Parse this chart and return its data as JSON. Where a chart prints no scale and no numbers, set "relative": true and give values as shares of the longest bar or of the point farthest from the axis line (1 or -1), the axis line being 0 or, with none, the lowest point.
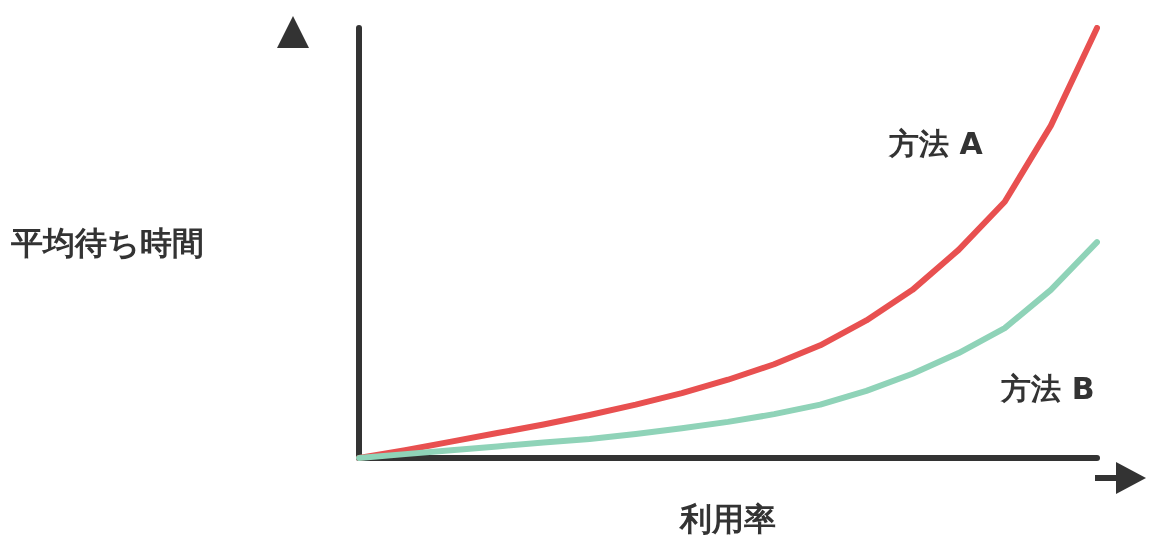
{
  "chart_data": {
    "type": "line",
    "relative": true,
    "xlabel": "利用率",
    "ylabel": "平均待ち時間",
    "categories": [
      null,
      null,
      null,
      null,
      null,
      null,
      null,
      null,
      null,
      null,
      null,
      null,
      null,
      null,
      null,
      null,
      null
    ],
    "marker": "none",
    "grid": false,
    "series": [
      {
        "name": "方法 A",
        "color": "#e85050",
        "values": [
          0,
          0.018,
          0.038,
          0.058,
          0.078,
          0.1,
          0.124,
          0.151,
          0.182,
          0.218,
          0.262,
          0.32,
          0.391,
          0.484,
          0.596,
          0.773,
          1
        ]
      },
      {
        "name": "方法 B",
        "color": "#8fd3b8",
        "values": [
          0,
          0.009,
          0.018,
          0.027,
          0.036,
          0.044,
          0.056,
          0.069,
          0.084,
          0.102,
          0.124,
          0.156,
          0.196,
          0.244,
          0.302,
          0.391,
          0.502
        ]
      }
    ]
  }
}
